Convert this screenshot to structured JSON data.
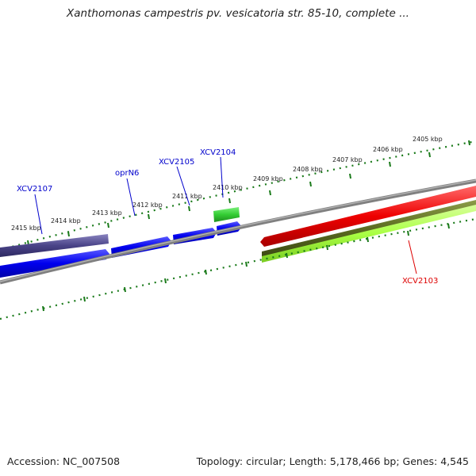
{
  "title": "Xanthomonas campestris pv. vesicatoria str. 85-10, complete ...",
  "footer": {
    "accession": "Accession: NC_007508",
    "topology": "Topology: circular; Length: 5,178,466 bp; Genes: 4,545"
  },
  "ruler": {
    "labels": [
      "2415 kbp",
      "2414 kbp",
      "2413 kbp",
      "2412 kbp",
      "2411 kbp",
      "2410 kbp",
      "2409 kbp",
      "2408 kbp",
      "2407 kbp",
      "2406 kbp",
      "2405 kbp"
    ]
  },
  "genes": [
    {
      "name": "XCV2107",
      "color": "#0000cc"
    },
    {
      "name": "oprN6",
      "color": "#0000cc"
    },
    {
      "name": "XCV2105",
      "color": "#0000cc"
    },
    {
      "name": "XCV2104",
      "color": "#0000cc"
    },
    {
      "name": "XCV2103",
      "color": "#dd0000"
    }
  ],
  "colors": {
    "backbone": "#808080",
    "ticks": "#1a7a1a",
    "forward_cds": "#0000ee",
    "forward_other": "#4a4488",
    "green_feature": "#33cc33",
    "reverse_cds": "#ee0000",
    "olive_feature": "#5a6a20",
    "lime_feature": "#aaff44"
  }
}
